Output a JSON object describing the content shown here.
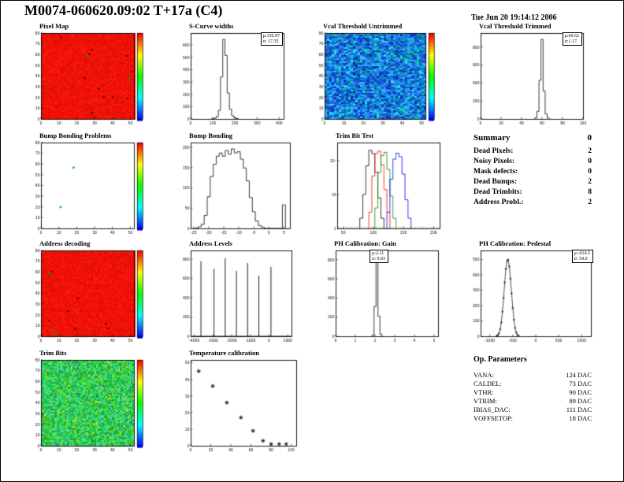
{
  "page": {
    "title": "M0074-060620.09:02 T+17a (C4)",
    "timestamp": "Tue Jun 20 19:14:12 2006"
  },
  "palette": {
    "map_red": "#e61000",
    "map_blue": "#2244cc",
    "map_green": "#33bb55",
    "speck_green": "#00c800",
    "hist_line": "#000000",
    "trimbit_colors": [
      "#000000",
      "#ff0000",
      "#008800",
      "#0000ff"
    ]
  },
  "summary": {
    "title": "Summary",
    "header_value": "0",
    "rows": [
      {
        "label": "Dead Pixels:",
        "value": "2"
      },
      {
        "label": "Noisy Pixels:",
        "value": "0"
      },
      {
        "label": "Mask defects:",
        "value": "0"
      },
      {
        "label": "Dead Bumps:",
        "value": "2"
      },
      {
        "label": "Dead Trimbits:",
        "value": "8"
      },
      {
        "label": "Address Probl.:",
        "value": "2"
      }
    ]
  },
  "op_parameters": {
    "title": "Op. Parameters",
    "rows": [
      {
        "label": "VANA:",
        "value": "124 DAC"
      },
      {
        "label": "CALDEL:",
        "value": "73 DAC"
      },
      {
        "label": "VTHR:",
        "value": "90 DAC"
      },
      {
        "label": "VTRIM:",
        "value": "89 DAC"
      },
      {
        "label": "IBIAS_DAC:",
        "value": "111 DAC"
      },
      {
        "label": "VOFFSETOP:",
        "value": "18 DAC"
      }
    ]
  },
  "chart_data": [
    {
      "id": "pixel-map",
      "type": "heatmap",
      "title": "Pixel Map",
      "style": "red",
      "seed": 11,
      "x_range": [
        0,
        52
      ],
      "y_range": [
        0,
        80
      ],
      "x_ticks": [
        0,
        10,
        20,
        30,
        40,
        50
      ],
      "y_ticks": [
        0,
        10,
        20,
        30,
        40,
        50,
        60,
        70,
        80
      ]
    },
    {
      "id": "scurve-widths",
      "type": "histogram",
      "title": "S-Curve widths",
      "stats_lines": [
        "μ:156.97",
        "σ: 17.35"
      ],
      "xmin": 0,
      "xmax": 420,
      "binw": 10,
      "x_ticks": [
        0,
        100,
        200,
        300,
        400
      ],
      "bins": [
        [
          100,
          2
        ],
        [
          110,
          6
        ],
        [
          120,
          18
        ],
        [
          130,
          70
        ],
        [
          140,
          340
        ],
        [
          150,
          645
        ],
        [
          160,
          515
        ],
        [
          170,
          210
        ],
        [
          180,
          78
        ],
        [
          190,
          26
        ],
        [
          200,
          9
        ],
        [
          210,
          3
        ]
      ]
    },
    {
      "id": "vcal-untrimmed",
      "type": "heatmap",
      "title": "Vcal Threshold Untrimmed",
      "style": "blue-noise",
      "seed": 23,
      "x_range": [
        0,
        52
      ],
      "y_range": [
        0,
        80
      ],
      "x_ticks": [
        0,
        10,
        20,
        30,
        40,
        50
      ],
      "y_ticks": [
        0,
        10,
        20,
        30,
        40,
        50,
        60,
        70,
        80
      ]
    },
    {
      "id": "vcal-trimmed",
      "type": "histogram",
      "title": "Vcal Threshold Trimmed",
      "stats_lines": [
        "μ:60.62",
        "σ:1.17"
      ],
      "xmin": 0,
      "xmax": 100,
      "binw": 2,
      "x_ticks": [
        0,
        20,
        40,
        60,
        80,
        100
      ],
      "bins": [
        [
          54,
          12
        ],
        [
          56,
          85
        ],
        [
          58,
          430
        ],
        [
          60,
          885
        ],
        [
          62,
          310
        ],
        [
          64,
          55
        ],
        [
          66,
          10
        ]
      ]
    },
    {
      "id": "bump-problems",
      "type": "heatmap",
      "title": "Bump Bonding Problems",
      "style": "white",
      "seed": 31,
      "x_range": [
        0,
        52
      ],
      "y_range": [
        0,
        80
      ],
      "x_ticks": [
        0,
        10,
        20,
        30,
        40,
        50
      ],
      "y_ticks": [
        0,
        10,
        20,
        30,
        40,
        50,
        60,
        70,
        80
      ],
      "specks": [
        [
          0.34,
          0.28
        ],
        [
          0.2,
          0.74
        ]
      ]
    },
    {
      "id": "bump-bonding",
      "type": "histogram",
      "title": "Bump Bonding",
      "xmin": -26,
      "xmax": 7,
      "binw": 1,
      "x_ticks": [
        -25,
        -20,
        -15,
        -10,
        -5,
        0,
        5
      ],
      "bins": [
        [
          -24,
          1
        ],
        [
          -23,
          4
        ],
        [
          -22,
          10
        ],
        [
          -21,
          32
        ],
        [
          -20,
          78
        ],
        [
          -19,
          128
        ],
        [
          -18,
          158
        ],
        [
          -17,
          178
        ],
        [
          -16,
          186
        ],
        [
          -15,
          178
        ],
        [
          -14,
          192
        ],
        [
          -13,
          183
        ],
        [
          -12,
          196
        ],
        [
          -11,
          186
        ],
        [
          -10,
          189
        ],
        [
          -9,
          171
        ],
        [
          -8,
          149
        ],
        [
          -7,
          117
        ],
        [
          -6,
          76
        ],
        [
          -5,
          41
        ],
        [
          -4,
          18
        ],
        [
          -3,
          7
        ],
        [
          -2,
          3
        ],
        [
          5,
          58
        ]
      ]
    },
    {
      "id": "trimbit-test",
      "type": "multihist",
      "title": "Trim Bit Test",
      "ylog": true,
      "xmin": 40,
      "xmax": 210,
      "binw": 5,
      "x_ticks": [
        50,
        100,
        150,
        200
      ],
      "y_ticks_log": [
        {
          "v": 1,
          "l": "1"
        },
        {
          "v": 10,
          "l": "10"
        },
        {
          "v": 100,
          "l": "10²"
        }
      ],
      "series": [
        {
          "name": "trimbit-0",
          "bins": [
            [
              80,
              2
            ],
            [
              85,
              10
            ],
            [
              90,
              70
            ],
            [
              95,
              200
            ],
            [
              100,
              160
            ],
            [
              105,
              45
            ],
            [
              110,
              8
            ],
            [
              115,
              2
            ]
          ]
        },
        {
          "name": "trimbit-1",
          "bins": [
            [
              95,
              3
            ],
            [
              100,
              35
            ],
            [
              105,
              160
            ],
            [
              110,
              190
            ],
            [
              115,
              75
            ],
            [
              120,
              14
            ],
            [
              125,
              3
            ]
          ]
        },
        {
          "name": "trimbit-2",
          "bins": [
            [
              105,
              4
            ],
            [
              110,
              45
            ],
            [
              115,
              140
            ],
            [
              120,
              175
            ],
            [
              125,
              55
            ],
            [
              130,
              9
            ],
            [
              135,
              2
            ]
          ]
        },
        {
          "name": "trimbit-3",
          "bins": [
            [
              125,
              3
            ],
            [
              130,
              28
            ],
            [
              135,
              110
            ],
            [
              140,
              165
            ],
            [
              145,
              130
            ],
            [
              150,
              40
            ],
            [
              155,
              7
            ],
            [
              160,
              2
            ]
          ]
        }
      ]
    },
    {
      "id": "addr-decoding",
      "type": "heatmap",
      "title": "Address decoding",
      "style": "red",
      "seed": 47,
      "x_range": [
        0,
        52
      ],
      "y_range": [
        0,
        80
      ],
      "x_ticks": [
        0,
        10,
        20,
        30,
        40,
        50
      ],
      "y_ticks": [
        0,
        10,
        20,
        30,
        40,
        50,
        60,
        70,
        80
      ]
    },
    {
      "id": "addr-levels",
      "type": "spikes",
      "title": "Address Levels",
      "xmin": -4200,
      "xmax": 1200,
      "x_ticks": [
        -4000,
        -3000,
        -2000,
        -1000,
        0,
        1000
      ],
      "spikes": [
        [
          -3650,
          780
        ],
        [
          -2950,
          700
        ],
        [
          -2350,
          810
        ],
        [
          -1750,
          680
        ],
        [
          -1150,
          760
        ],
        [
          -550,
          630
        ],
        [
          100,
          720
        ]
      ]
    },
    {
      "id": "ph-gain",
      "type": "histogram",
      "title": "PH Calibration: Gain",
      "stats_lines": [
        "μ:2.11",
        "σ: 0.03"
      ],
      "xmin": 0,
      "xmax": 5.2,
      "binw": 0.1,
      "x_ticks": [
        0,
        1,
        2,
        3,
        4,
        5
      ],
      "bins": [
        [
          1.9,
          12
        ],
        [
          2.0,
          310
        ],
        [
          2.1,
          830
        ],
        [
          2.2,
          210
        ],
        [
          2.3,
          22
        ]
      ]
    },
    {
      "id": "ph-pedestal",
      "type": "marker-hist",
      "title": "PH Calibration: Pedestal",
      "stats_lines": [
        "μ:-614.5",
        "σ: 54.0"
      ],
      "xmin": -1200,
      "xmax": 1200,
      "x_ticks": [
        -1000,
        -500,
        0,
        500,
        1000
      ],
      "bins": [
        [
          -850,
          3
        ],
        [
          -825,
          8
        ],
        [
          -800,
          20
        ],
        [
          -775,
          45
        ],
        [
          -750,
          90
        ],
        [
          -725,
          160
        ],
        [
          -700,
          250
        ],
        [
          -675,
          350
        ],
        [
          -650,
          440
        ],
        [
          -625,
          490
        ],
        [
          -600,
          500
        ],
        [
          -575,
          455
        ],
        [
          -550,
          375
        ],
        [
          -525,
          280
        ],
        [
          -500,
          185
        ],
        [
          -475,
          108
        ],
        [
          -450,
          55
        ],
        [
          -425,
          25
        ],
        [
          -400,
          10
        ],
        [
          -375,
          4
        ]
      ]
    },
    {
      "id": "trim-bits",
      "type": "heatmap",
      "title": "Trim Bits",
      "style": "green-noise",
      "seed": 59,
      "x_range": [
        0,
        52
      ],
      "y_range": [
        0,
        80
      ],
      "x_ticks": [
        0,
        10,
        20,
        30,
        40,
        50
      ],
      "y_ticks": [
        0,
        10,
        20,
        30,
        40,
        50,
        60,
        70,
        80
      ]
    },
    {
      "id": "temp-cal",
      "type": "scatter",
      "title": "Temperature calibration",
      "marker": "star",
      "xmin": 0,
      "xmax": 105,
      "x_ticks": [
        0,
        20,
        40,
        60,
        80,
        100
      ],
      "points": [
        [
          8,
          45
        ],
        [
          22,
          36
        ],
        [
          36,
          26
        ],
        [
          50,
          17
        ],
        [
          62,
          9
        ],
        [
          72,
          3
        ],
        [
          80,
          1
        ],
        [
          88,
          1
        ],
        [
          95,
          1
        ]
      ]
    }
  ]
}
